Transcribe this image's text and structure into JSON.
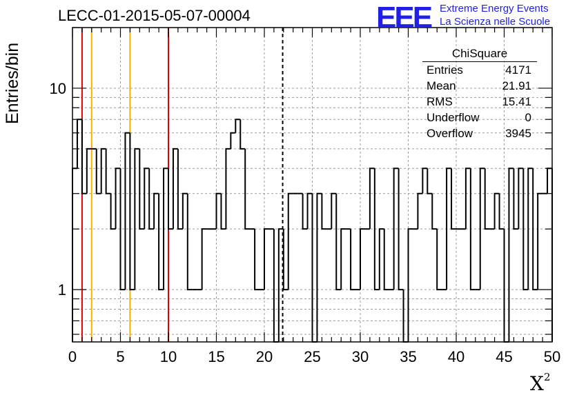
{
  "title": "LECC-01-2015-05-07-00004",
  "logo": {
    "mark": "EEE",
    "line1": "Extreme Energy Events",
    "line2": "La Scienza nelle Scuole",
    "color": "#1f1fe6"
  },
  "stats": {
    "title": "ChiSquare",
    "rows": [
      {
        "label": "Entries",
        "value": "4171"
      },
      {
        "label": "Mean",
        "value": "21.91"
      },
      {
        "label": "RMS",
        "value": "15.41"
      },
      {
        "label": "Underflow",
        "value": "0"
      },
      {
        "label": "Overflow",
        "value": "3945"
      }
    ]
  },
  "chart_data": {
    "type": "bar",
    "histogram": true,
    "xlabel": "X",
    "xlabel_superscript": "2",
    "ylabel": "Entries/bin",
    "xlim": [
      0,
      50
    ],
    "ylim": [
      0.55,
      20
    ],
    "yscale": "log",
    "grid": true,
    "bin_width": 0.5,
    "x_ticks": [
      "0",
      "5",
      "10",
      "15",
      "20",
      "25",
      "30",
      "35",
      "40",
      "45",
      "50"
    ],
    "y_tick_labels": [
      {
        "value": 1,
        "label": "1"
      },
      {
        "value": 10,
        "label": "10"
      }
    ],
    "values": [
      4,
      7,
      3,
      5,
      5,
      3,
      5,
      3,
      2,
      4,
      1,
      6,
      1,
      5,
      2,
      4,
      2,
      3,
      1,
      4,
      2,
      5,
      2,
      3,
      1,
      1,
      1,
      2,
      2,
      2,
      3,
      2,
      5,
      6,
      7,
      5,
      2,
      2,
      1,
      1,
      2,
      2,
      0,
      2,
      1,
      3,
      3,
      3,
      2,
      3,
      0,
      3,
      2,
      2,
      3,
      1,
      2,
      2,
      1,
      1,
      2,
      2,
      4,
      1,
      2,
      1,
      1,
      4,
      1,
      0,
      2,
      2,
      3,
      4,
      3,
      2,
      1,
      1,
      4,
      2,
      2,
      2,
      4,
      1,
      1,
      4,
      2,
      2,
      3,
      2,
      0,
      4,
      2,
      4,
      1,
      4,
      1,
      3,
      3,
      4
    ],
    "vertical_lines": [
      {
        "x": 1,
        "color": "#e00000",
        "style": "solid"
      },
      {
        "x": 2,
        "color": "#f0b400",
        "style": "solid"
      },
      {
        "x": 6,
        "color": "#f0b400",
        "style": "solid"
      },
      {
        "x": 10,
        "color": "#e00000",
        "style": "solid"
      },
      {
        "x": 21.91,
        "color": "#000000",
        "style": "dashed"
      }
    ]
  }
}
